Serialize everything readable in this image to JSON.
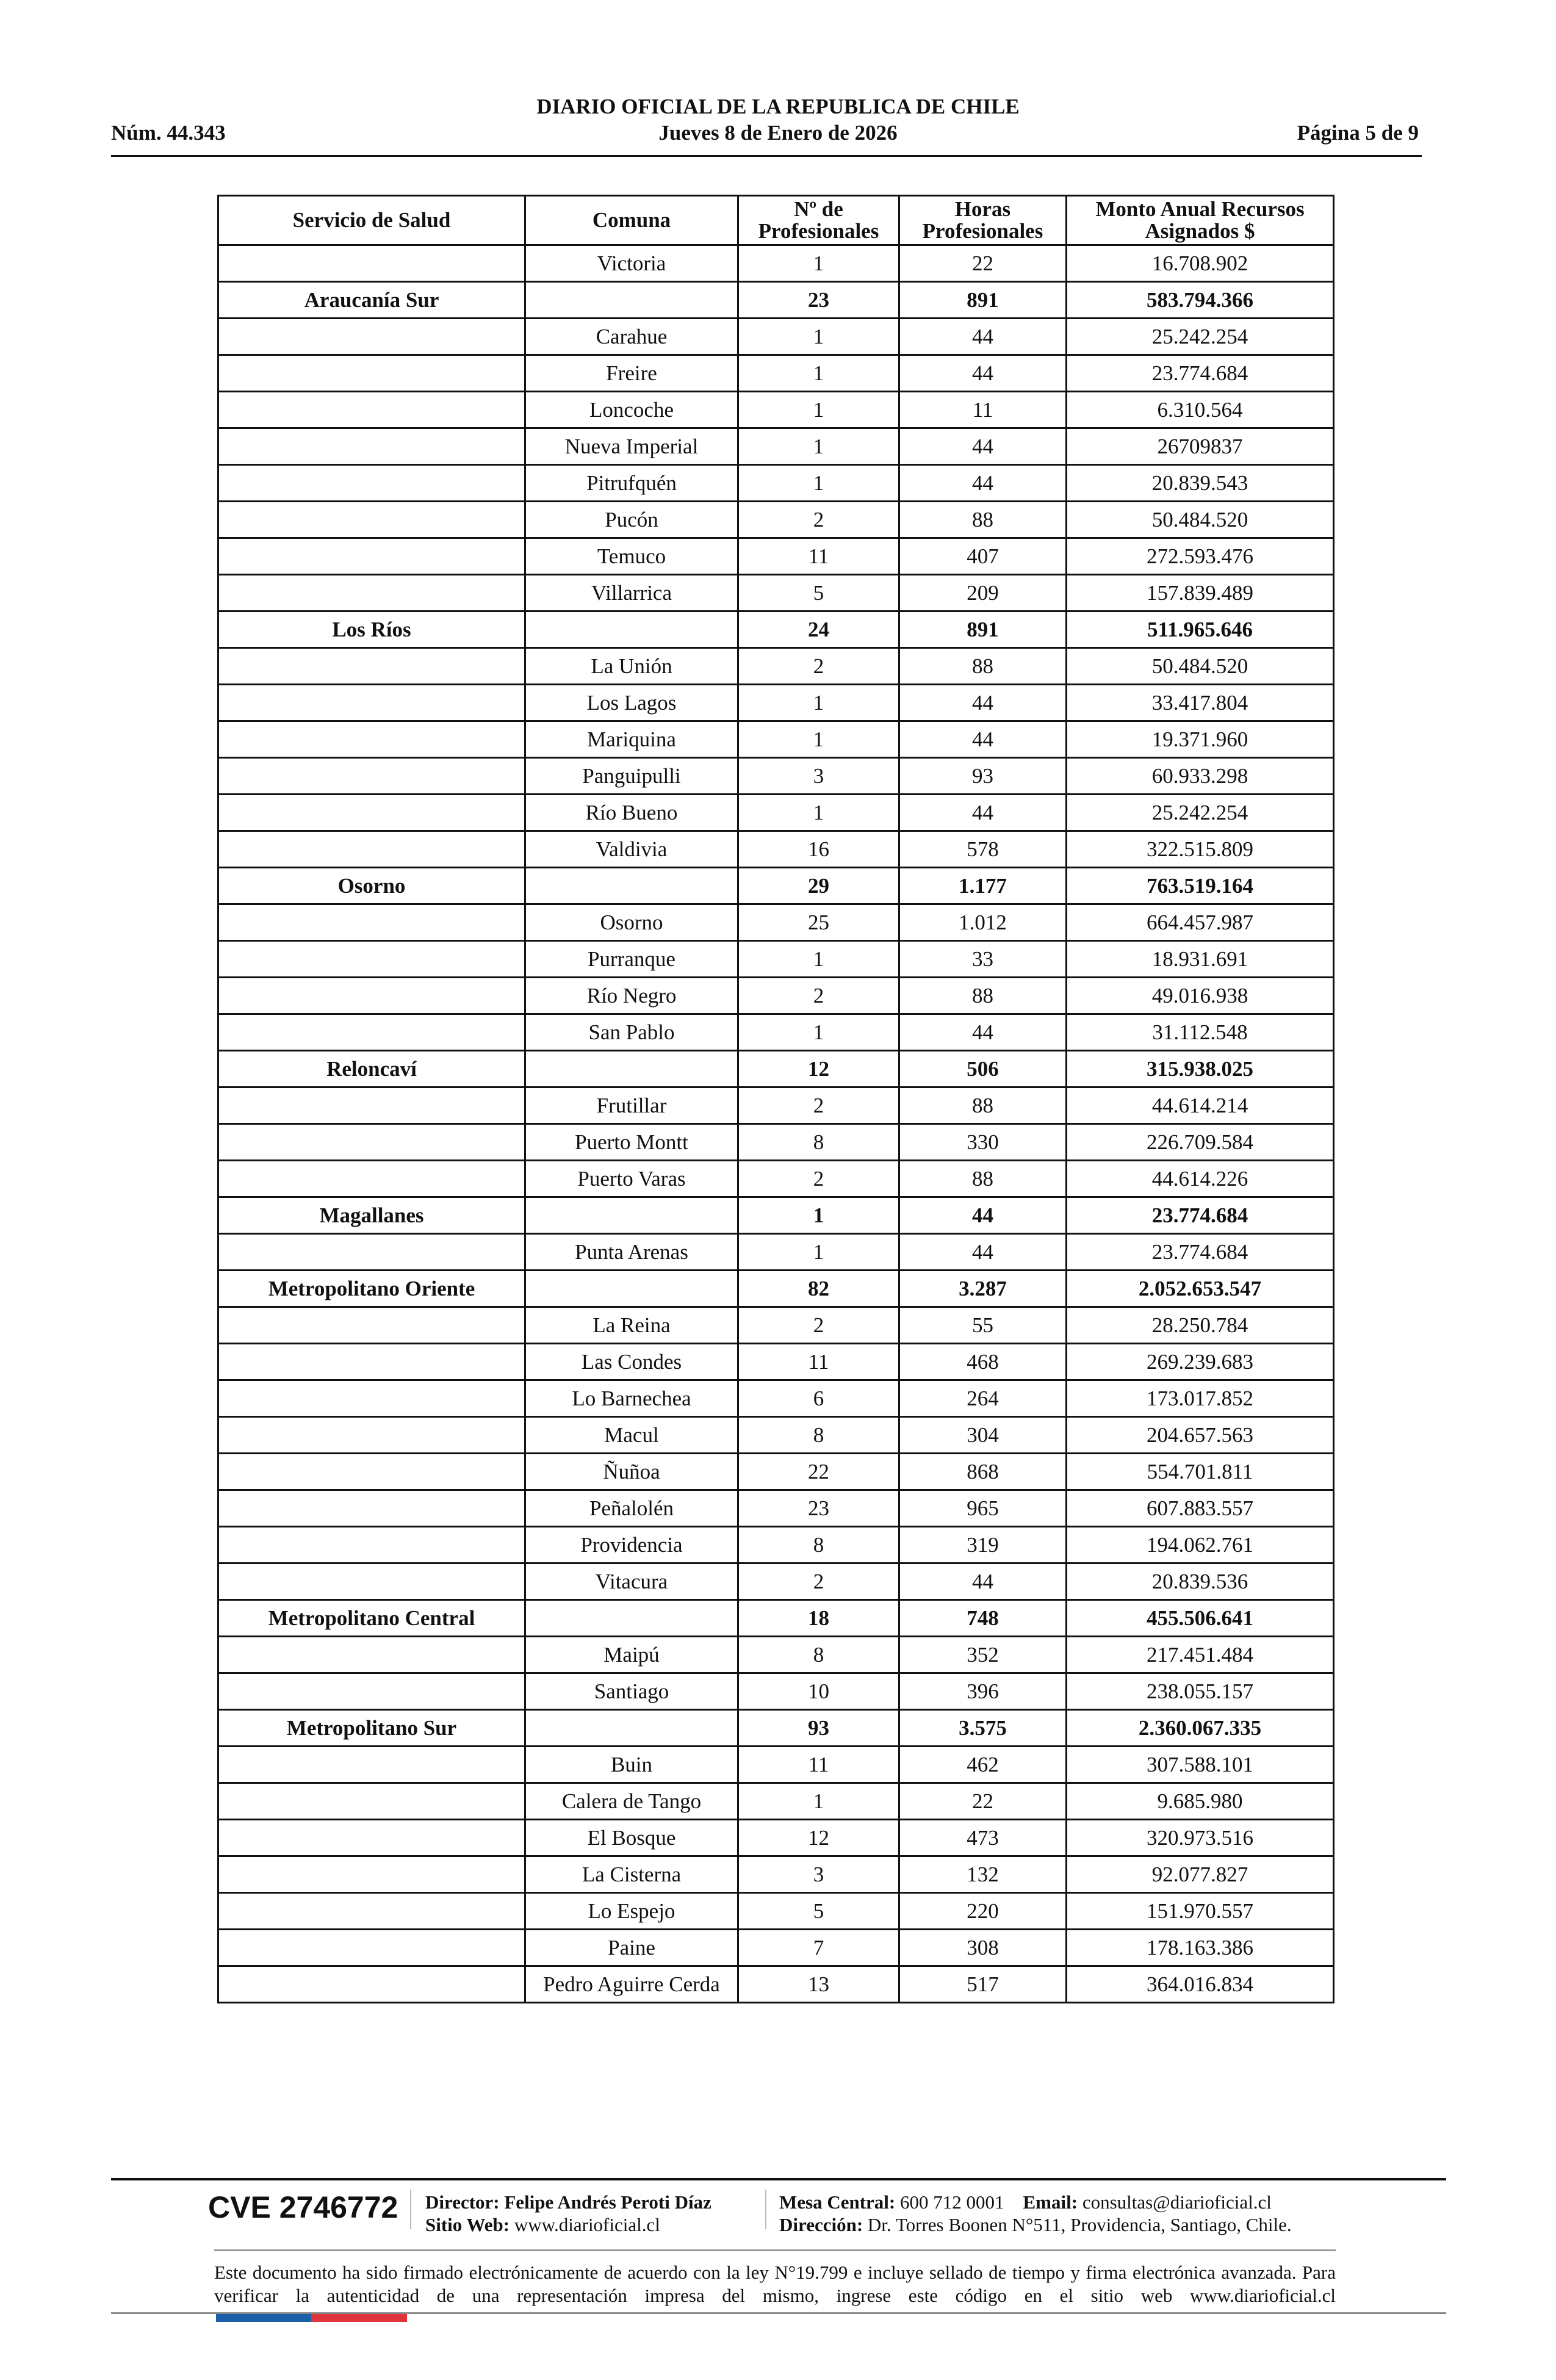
{
  "header": {
    "title": "DIARIO OFICIAL DE LA REPUBLICA DE CHILE",
    "number": "Núm. 44.343",
    "date": "Jueves 8 de Enero de 2026",
    "page": "Página 5 de 9"
  },
  "table": {
    "columns": [
      "Servicio de Salud",
      "Comuna",
      "Nº de Profesionales",
      "Horas Profesionales",
      "Monto Anual Recursos Asignados $"
    ],
    "rows": [
      [
        "",
        "Victoria",
        "1",
        "22",
        "16.708.902"
      ],
      [
        "Araucanía Sur",
        "",
        "23",
        "891",
        "583.794.366"
      ],
      [
        "",
        "Carahue",
        "1",
        "44",
        "25.242.254"
      ],
      [
        "",
        "Freire",
        "1",
        "44",
        "23.774.684"
      ],
      [
        "",
        "Loncoche",
        "1",
        "11",
        "6.310.564"
      ],
      [
        "",
        "Nueva Imperial",
        "1",
        "44",
        "26709837"
      ],
      [
        "",
        "Pitrufquén",
        "1",
        "44",
        "20.839.543"
      ],
      [
        "",
        "Pucón",
        "2",
        "88",
        "50.484.520"
      ],
      [
        "",
        "Temuco",
        "11",
        "407",
        "272.593.476"
      ],
      [
        "",
        "Villarrica",
        "5",
        "209",
        "157.839.489"
      ],
      [
        "Los Ríos",
        "",
        "24",
        "891",
        "511.965.646"
      ],
      [
        "",
        "La Unión",
        "2",
        "88",
        "50.484.520"
      ],
      [
        "",
        "Los Lagos",
        "1",
        "44",
        "33.417.804"
      ],
      [
        "",
        "Mariquina",
        "1",
        "44",
        "19.371.960"
      ],
      [
        "",
        "Panguipulli",
        "3",
        "93",
        "60.933.298"
      ],
      [
        "",
        "Río Bueno",
        "1",
        "44",
        "25.242.254"
      ],
      [
        "",
        "Valdivia",
        "16",
        "578",
        "322.515.809"
      ],
      [
        "Osorno",
        "",
        "29",
        "1.177",
        "763.519.164"
      ],
      [
        "",
        "Osorno",
        "25",
        "1.012",
        "664.457.987"
      ],
      [
        "",
        "Purranque",
        "1",
        "33",
        "18.931.691"
      ],
      [
        "",
        "Río Negro",
        "2",
        "88",
        "49.016.938"
      ],
      [
        "",
        "San Pablo",
        "1",
        "44",
        "31.112.548"
      ],
      [
        "Reloncaví",
        "",
        "12",
        "506",
        "315.938.025"
      ],
      [
        "",
        "Frutillar",
        "2",
        "88",
        "44.614.214"
      ],
      [
        "",
        "Puerto Montt",
        "8",
        "330",
        "226.709.584"
      ],
      [
        "",
        "Puerto Varas",
        "2",
        "88",
        "44.614.226"
      ],
      [
        "Magallanes",
        "",
        "1",
        "44",
        "23.774.684"
      ],
      [
        "",
        "Punta Arenas",
        "1",
        "44",
        "23.774.684"
      ],
      [
        "Metropolitano Oriente",
        "",
        "82",
        "3.287",
        "2.052.653.547"
      ],
      [
        "",
        "La Reina",
        "2",
        "55",
        "28.250.784"
      ],
      [
        "",
        "Las Condes",
        "11",
        "468",
        "269.239.683"
      ],
      [
        "",
        "Lo Barnechea",
        "6",
        "264",
        "173.017.852"
      ],
      [
        "",
        "Macul",
        "8",
        "304",
        "204.657.563"
      ],
      [
        "",
        "Ñuñoa",
        "22",
        "868",
        "554.701.811"
      ],
      [
        "",
        "Peñalolén",
        "23",
        "965",
        "607.883.557"
      ],
      [
        "",
        "Providencia",
        "8",
        "319",
        "194.062.761"
      ],
      [
        "",
        "Vitacura",
        "2",
        "44",
        "20.839.536"
      ],
      [
        "Metropolitano Central",
        "",
        "18",
        "748",
        "455.506.641"
      ],
      [
        "",
        "Maipú",
        "8",
        "352",
        "217.451.484"
      ],
      [
        "",
        "Santiago",
        "10",
        "396",
        "238.055.157"
      ],
      [
        "Metropolitano Sur",
        "",
        "93",
        "3.575",
        "2.360.067.335"
      ],
      [
        "",
        "Buin",
        "11",
        "462",
        "307.588.101"
      ],
      [
        "",
        "Calera de Tango",
        "1",
        "22",
        "9.685.980"
      ],
      [
        "",
        "El Bosque",
        "12",
        "473",
        "320.973.516"
      ],
      [
        "",
        "La Cisterna",
        "3",
        "132",
        "92.077.827"
      ],
      [
        "",
        "Lo Espejo",
        "5",
        "220",
        "151.970.557"
      ],
      [
        "",
        "Paine",
        "7",
        "308",
        "178.163.386"
      ],
      [
        "",
        "Pedro Aguirre Cerda",
        "13",
        "517",
        "364.016.834"
      ]
    ]
  },
  "footer": {
    "cve": "CVE 2746772",
    "director_label": "Director:",
    "director": "Felipe Andrés Peroti Díaz",
    "web_label": "Sitio Web:",
    "web": "www.diarioficial.cl",
    "mesa_label": "Mesa Central:",
    "mesa": "600 712 0001",
    "email_label": "Email:",
    "email": "consultas@diarioficial.cl",
    "address_label": "Dirección:",
    "address": "Dr. Torres Boonen N°511, Providencia, Santiago, Chile.",
    "disclaimer": "Este documento ha sido firmado electrónicamente de acuerdo con la ley N°19.799 e incluye sellado de tiempo y firma electrónica avanzada. Para verificar la autenticidad de una representación impresa del mismo, ingrese este código en el sitio web www.diarioficial.cl",
    "flag_colors": [
      "#1a5fa8",
      "#e0343c"
    ]
  }
}
